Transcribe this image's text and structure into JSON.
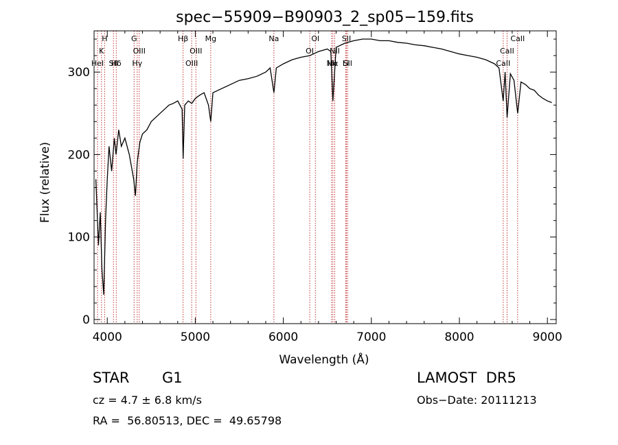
{
  "chart_data": {
    "type": "line",
    "title": "spec−55909−B90903_2_sp05−159.fits",
    "xlabel": "Wavelength (Å)",
    "ylabel": "Flux (relative)",
    "xlim": [
      3850,
      9100
    ],
    "ylim": [
      -5,
      350
    ],
    "xticks": [
      4000,
      5000,
      6000,
      7000,
      8000,
      9000
    ],
    "yticks": [
      0,
      100,
      200,
      300
    ],
    "series": [
      {
        "x": [
          3870,
          3900,
          3920,
          3940,
          3960,
          3980,
          4000,
          4020,
          4050,
          4080,
          4100,
          4130,
          4160,
          4200,
          4250,
          4300,
          4320,
          4340,
          4370,
          4400,
          4450,
          4500,
          4550,
          4600,
          4650,
          4700,
          4750,
          4800,
          4850,
          4862,
          4880,
          4920,
          4960,
          5000,
          5050,
          5100,
          5150,
          5175,
          5200,
          5300,
          5400,
          5500,
          5600,
          5700,
          5800,
          5850,
          5893,
          5920,
          6000,
          6100,
          6200,
          6300,
          6400,
          6500,
          6540,
          6563,
          6600,
          6700,
          6800,
          6900,
          7000,
          7100,
          7200,
          7300,
          7400,
          7500,
          7600,
          7700,
          7800,
          7900,
          8000,
          8100,
          8200,
          8300,
          8400,
          8450,
          8498,
          8520,
          8542,
          8580,
          8620,
          8662,
          8700,
          8750,
          8800,
          8850,
          8900,
          8950,
          9000,
          9050
        ],
        "y": [
          170,
          90,
          130,
          60,
          30,
          120,
          170,
          210,
          180,
          220,
          200,
          230,
          210,
          220,
          200,
          170,
          150,
          190,
          215,
          225,
          230,
          240,
          245,
          250,
          255,
          260,
          262,
          265,
          255,
          195,
          260,
          265,
          262,
          268,
          272,
          275,
          260,
          240,
          275,
          280,
          285,
          290,
          292,
          295,
          300,
          305,
          275,
          305,
          310,
          315,
          318,
          320,
          325,
          328,
          325,
          265,
          330,
          335,
          338,
          340,
          340,
          338,
          338,
          336,
          335,
          333,
          332,
          330,
          328,
          325,
          322,
          320,
          318,
          315,
          310,
          305,
          265,
          300,
          245,
          298,
          290,
          250,
          288,
          285,
          280,
          278,
          272,
          268,
          265,
          263
        ]
      }
    ],
    "lines": [
      {
        "label": "H",
        "x": 3970
      },
      {
        "label": "K",
        "x": 3934
      },
      {
        "label": "HeI",
        "x": 3889
      },
      {
        "label": "Hδ",
        "x": 4102
      },
      {
        "label": "SII",
        "x": 4070
      },
      {
        "label": "G",
        "x": 4305
      },
      {
        "label": "OIII",
        "x": 4363
      },
      {
        "label": "Hγ",
        "x": 4340
      },
      {
        "label": "Hβ",
        "x": 4861
      },
      {
        "label": "OIII",
        "x": 5007
      },
      {
        "label": "OIII",
        "x": 4959
      },
      {
        "label": "Mg",
        "x": 5175
      },
      {
        "label": "Na",
        "x": 5893
      },
      {
        "label": "OI",
        "x": 6364
      },
      {
        "label": "OI",
        "x": 6300
      },
      {
        "label": "NII",
        "x": 6584
      },
      {
        "label": "Hα",
        "x": 6563
      },
      {
        "label": "NII",
        "x": 6548
      },
      {
        "label": "SII",
        "x": 6717
      },
      {
        "label": "SII",
        "x": 6731
      },
      {
        "label": "Li",
        "x": 6708
      },
      {
        "label": "CaII",
        "x": 8662
      },
      {
        "label": "CaII",
        "x": 8542
      },
      {
        "label": "CaII",
        "x": 8498
      }
    ]
  },
  "info": {
    "class": "STAR",
    "subclass": "G1",
    "survey": "LAMOST  DR5",
    "cz": "cz = 4.7 ± 6.8 km/s",
    "obs_date": "Obs−Date: 20111213",
    "radec": "RA =  56.80513, DEC =  49.65798"
  }
}
